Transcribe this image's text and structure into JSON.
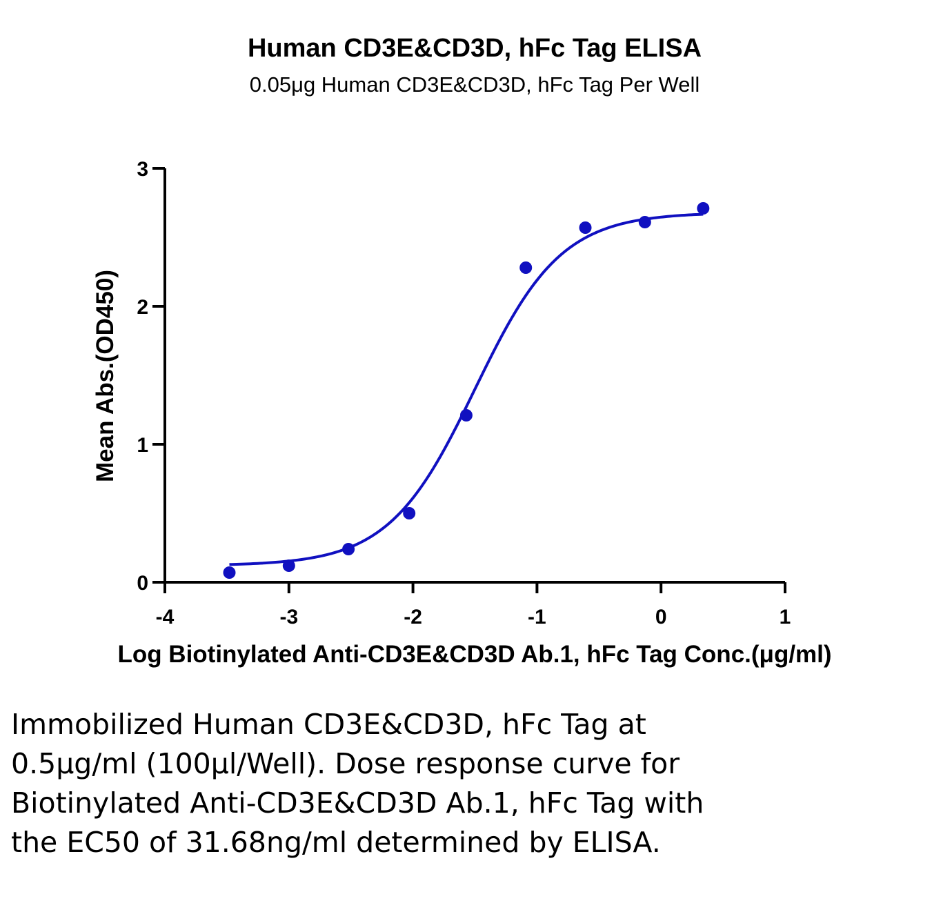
{
  "chart_data": {
    "type": "scatter",
    "title": "Human CD3E&CD3D, hFc Tag ELISA",
    "subtitle": "0.05μg Human CD3E&CD3D,  hFc Tag Per Well",
    "xlabel": "Log Biotinylated Anti-CD3E&CD3D Ab.1, hFc Tag Conc.(μg/ml)",
    "ylabel": "Mean Abs.(OD450)",
    "xlim": [
      -4,
      1
    ],
    "ylim": [
      0,
      3
    ],
    "x_ticks": [
      -4,
      -3,
      -2,
      -1,
      0,
      1
    ],
    "y_ticks": [
      0,
      1,
      2,
      3
    ],
    "x_tick_labels": [
      "-4",
      "-3",
      "-2",
      "-1",
      "0",
      "1"
    ],
    "y_tick_labels": [
      "0",
      "1",
      "2",
      "3"
    ],
    "grid": false,
    "series": [
      {
        "color": "#1010c0",
        "points": [
          {
            "x": -3.48,
            "y": 0.07
          },
          {
            "x": -3.0,
            "y": 0.12
          },
          {
            "x": -2.52,
            "y": 0.24
          },
          {
            "x": -2.03,
            "y": 0.5
          },
          {
            "x": -1.57,
            "y": 1.21
          },
          {
            "x": -1.09,
            "y": 2.28
          },
          {
            "x": -0.61,
            "y": 2.57
          },
          {
            "x": -0.13,
            "y": 2.61
          },
          {
            "x": 0.34,
            "y": 2.71
          }
        ],
        "fit": {
          "bottom": 0.12,
          "top": 2.68,
          "log_ec50": -1.5,
          "hill_slope": 1.25,
          "x_range": [
            -3.48,
            0.34
          ]
        }
      }
    ]
  },
  "caption": "Immobilized Human CD3E&CD3D, hFc Tag at 0.5μg/ml (100μl/Well). Dose response curve for Biotinylated Anti-CD3E&CD3D Ab.1, hFc Tag with the EC50 of 31.68ng/ml determined by ELISA."
}
